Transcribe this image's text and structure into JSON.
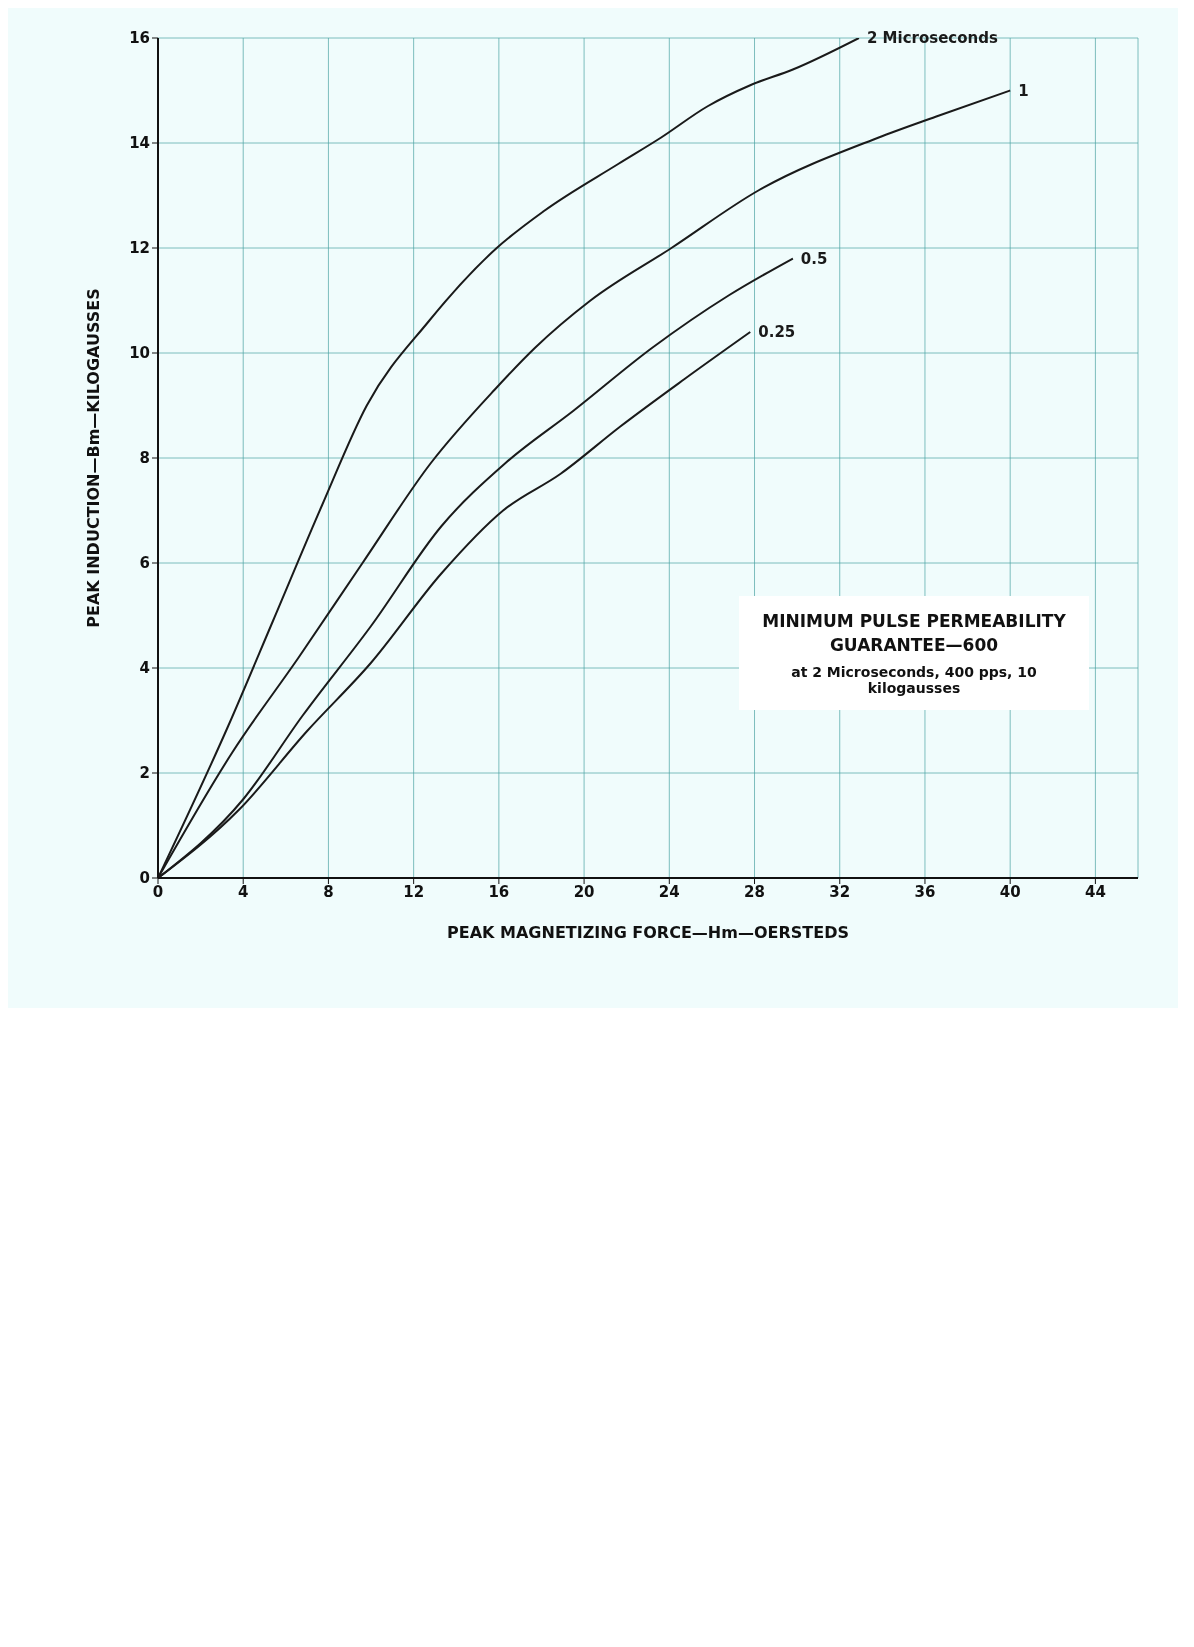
{
  "chart_data": {
    "type": "line",
    "title": "MINIMUM PULSE PERMEABILITY GUARANTEE—600",
    "subtitle": "at 2 Microseconds, 400 pps, 10 kilogausses",
    "xlabel": "PEAK MAGNETIZING FORCE—Hm—OERSTEDS",
    "ylabel": "PEAK INDUCTION—Bm—KILOGAUSSES",
    "xlim": [
      0,
      46
    ],
    "ylim": [
      0,
      16
    ],
    "xticks": [
      0,
      4,
      8,
      12,
      16,
      20,
      24,
      28,
      32,
      36,
      40,
      44
    ],
    "yticks": [
      0,
      2,
      4,
      6,
      8,
      10,
      12,
      14,
      16
    ],
    "grid": true,
    "legend": false,
    "series": [
      {
        "name": "2 Microseconds",
        "color": "#1a1a1a",
        "x": [
          0,
          3.3,
          5.4,
          7.7,
          9.8,
          12.7,
          15.9,
          18.1,
          21.6,
          23.6,
          25.8,
          27.8,
          29.8,
          32.9
        ],
        "values": [
          0,
          2.9,
          4.9,
          7.1,
          9.0,
          10.6,
          12.0,
          12.7,
          13.6,
          14.1,
          14.7,
          15.1,
          15.4,
          16.0
        ]
      },
      {
        "name": "1",
        "color": "#1a1a1a",
        "x": [
          0,
          3.5,
          6.6,
          9.6,
          12.8,
          15.8,
          17.7,
          20.3,
          24.1,
          28.2,
          33.8,
          36.5,
          40
        ],
        "values": [
          0,
          2.4,
          4.2,
          6.0,
          7.9,
          9.3,
          10.1,
          11.0,
          12.0,
          13.1,
          14.1,
          14.5,
          15.0
        ]
      },
      {
        "name": "0.5",
        "color": "#1a1a1a",
        "x": [
          0,
          4,
          6.8,
          10,
          13.3,
          16.3,
          19.5,
          23.2,
          26.8,
          29.8
        ],
        "values": [
          0,
          1.5,
          3.1,
          4.8,
          6.7,
          7.9,
          8.9,
          10.1,
          11.1,
          11.8
        ]
      },
      {
        "name": "0.25",
        "color": "#1a1a1a",
        "x": [
          0,
          3.8,
          7,
          10,
          13.3,
          16.2,
          18.9,
          21.7,
          24.7,
          27.8
        ],
        "values": [
          0,
          1.3,
          2.8,
          4.1,
          5.8,
          7.0,
          7.7,
          8.6,
          9.5,
          10.4
        ]
      }
    ]
  }
}
